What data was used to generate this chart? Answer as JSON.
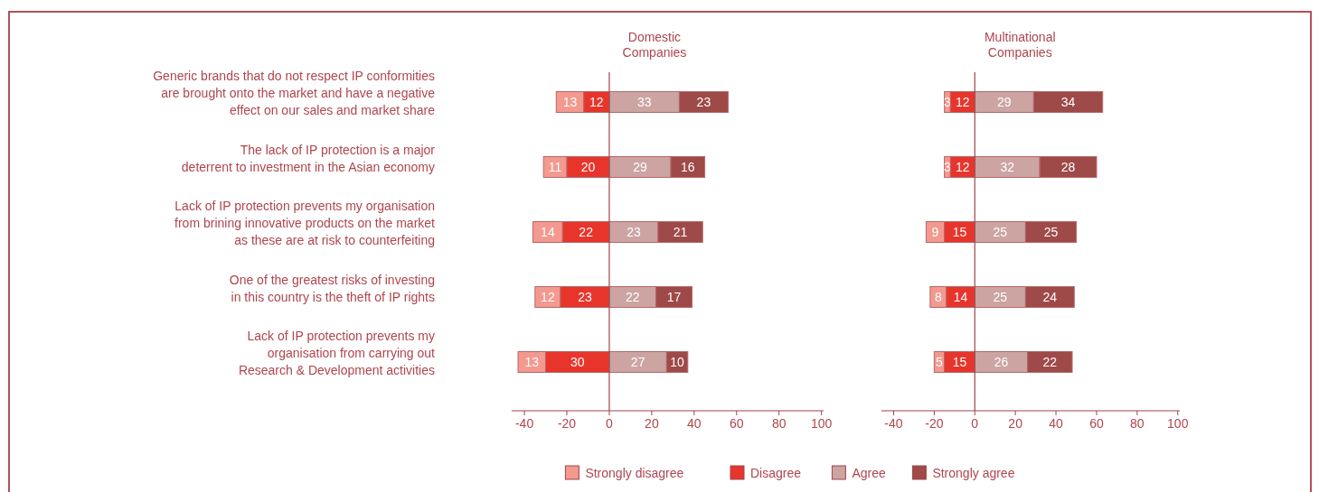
{
  "chart_data": [
    {
      "type": "bar",
      "orientation": "horizontal",
      "title": "Domestic Companies",
      "categories": [
        "Generic brands that do not respect IP conformities\nare brought onto the market and have a negative\neffect on our sales and market share",
        "The lack of IP protection is a major\ndeterrent to investment in the Asian economy",
        "Lack of IP protection prevents my organisation\nfrom brining innovative products on the market\nas these are at risk to counterfeiting",
        "One of the greatest risks of investing\nin this country is the theft of IP rights",
        "Lack of IP protection prevents my\norganisation from carrying out\nResearch & Development activities"
      ],
      "series": [
        {
          "name": "Strongly disagree",
          "color": "#f4998f",
          "base": [
            -25,
            -31,
            -36,
            -35,
            -43
          ],
          "values": [
            13,
            11,
            14,
            12,
            13
          ]
        },
        {
          "name": "Disagree",
          "color": "#e8352b",
          "base": [
            -12,
            -20,
            -22,
            -23,
            -30
          ],
          "values": [
            12,
            20,
            22,
            23,
            30
          ]
        },
        {
          "name": "Agree",
          "color": "#cca4a2",
          "base": [
            0,
            0,
            0,
            0,
            0
          ],
          "values": [
            33,
            29,
            23,
            22,
            27
          ]
        },
        {
          "name": "Strongly agree",
          "color": "#9e4a48",
          "base": [
            33,
            29,
            23,
            22,
            27
          ],
          "values": [
            23,
            16,
            21,
            17,
            10
          ]
        }
      ],
      "data_labels": true,
      "ref_lines": [
        {
          "axis": "x",
          "value": 0
        }
      ],
      "xlim": [
        -46,
        101
      ],
      "xticks": [
        -40,
        -20,
        0,
        20,
        40,
        60,
        80,
        100
      ],
      "legend": "bottom"
    },
    {
      "type": "bar",
      "orientation": "horizontal",
      "title": "Multinational Companies",
      "categories": [
        null,
        null,
        null,
        null,
        null
      ],
      "series": [
        {
          "color": "#f4998f",
          "base": [
            -15,
            -15,
            -24,
            -22,
            -20
          ],
          "values": [
            3,
            3,
            9,
            8,
            5
          ]
        },
        {
          "color": "#e8352b",
          "base": [
            -12,
            -12,
            -15,
            -14,
            -15
          ],
          "values": [
            12,
            12,
            15,
            14,
            15
          ]
        },
        {
          "color": "#cca4a2",
          "base": [
            0,
            0,
            0,
            0,
            0
          ],
          "values": [
            29,
            32,
            25,
            25,
            26
          ]
        },
        {
          "color": "#9e4a48",
          "base": [
            29,
            32,
            25,
            25,
            26
          ],
          "values": [
            34,
            28,
            25,
            24,
            22
          ]
        }
      ],
      "data_labels": true,
      "ref_lines": [
        {
          "axis": "x",
          "value": 0
        }
      ],
      "xlim": [
        -46,
        101
      ],
      "xticks": [
        -40,
        -20,
        0,
        20,
        40,
        60,
        80,
        100
      ]
    }
  ]
}
